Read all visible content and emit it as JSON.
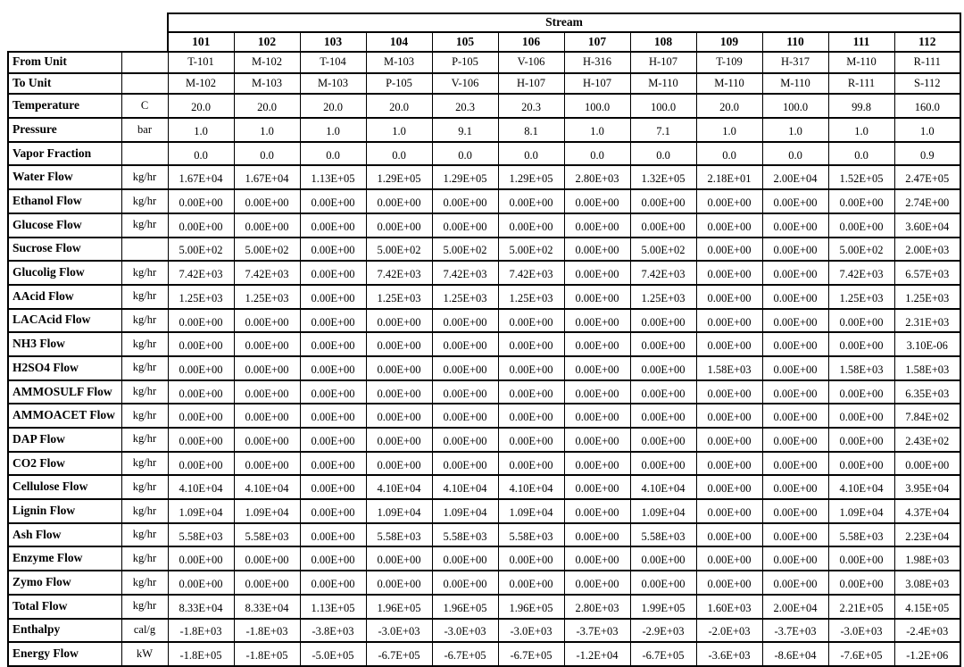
{
  "table": {
    "stream_header": "Stream",
    "columns": [
      "101",
      "102",
      "103",
      "104",
      "105",
      "106",
      "107",
      "108",
      "109",
      "110",
      "111",
      "112"
    ],
    "rows": [
      {
        "label": "From Unit",
        "unit": "",
        "values": [
          "T-101",
          "M-102",
          "T-104",
          "M-103",
          "P-105",
          "V-106",
          "H-316",
          "H-107",
          "T-109",
          "H-317",
          "M-110",
          "R-111"
        ]
      },
      {
        "label": "To Unit",
        "unit": "",
        "values": [
          "M-102",
          "M-103",
          "M-103",
          "P-105",
          "V-106",
          "H-107",
          "H-107",
          "M-110",
          "M-110",
          "M-110",
          "R-111",
          "S-112"
        ]
      },
      {
        "label": "Temperature",
        "unit": "C",
        "values": [
          "20.0",
          "20.0",
          "20.0",
          "20.0",
          "20.3",
          "20.3",
          "100.0",
          "100.0",
          "20.0",
          "100.0",
          "99.8",
          "160.0"
        ]
      },
      {
        "label": "Pressure",
        "unit": "bar",
        "values": [
          "1.0",
          "1.0",
          "1.0",
          "1.0",
          "9.1",
          "8.1",
          "1.0",
          "7.1",
          "1.0",
          "1.0",
          "1.0",
          "1.0"
        ]
      },
      {
        "label": "Vapor Fraction",
        "unit": "",
        "values": [
          "0.0",
          "0.0",
          "0.0",
          "0.0",
          "0.0",
          "0.0",
          "0.0",
          "0.0",
          "0.0",
          "0.0",
          "0.0",
          "0.9"
        ]
      },
      {
        "label": "Water Flow",
        "unit": "kg/hr",
        "values": [
          "1.67E+04",
          "1.67E+04",
          "1.13E+05",
          "1.29E+05",
          "1.29E+05",
          "1.29E+05",
          "2.80E+03",
          "1.32E+05",
          "2.18E+01",
          "2.00E+04",
          "1.52E+05",
          "2.47E+05"
        ]
      },
      {
        "label": "Ethanol Flow",
        "unit": "kg/hr",
        "values": [
          "0.00E+00",
          "0.00E+00",
          "0.00E+00",
          "0.00E+00",
          "0.00E+00",
          "0.00E+00",
          "0.00E+00",
          "0.00E+00",
          "0.00E+00",
          "0.00E+00",
          "0.00E+00",
          "2.74E+00"
        ]
      },
      {
        "label": "Glucose Flow",
        "unit": "kg/hr",
        "values": [
          "0.00E+00",
          "0.00E+00",
          "0.00E+00",
          "0.00E+00",
          "0.00E+00",
          "0.00E+00",
          "0.00E+00",
          "0.00E+00",
          "0.00E+00",
          "0.00E+00",
          "0.00E+00",
          "3.60E+04"
        ]
      },
      {
        "label": "Sucrose Flow",
        "unit": "",
        "values": [
          "5.00E+02",
          "5.00E+02",
          "0.00E+00",
          "5.00E+02",
          "5.00E+02",
          "5.00E+02",
          "0.00E+00",
          "5.00E+02",
          "0.00E+00",
          "0.00E+00",
          "5.00E+02",
          "2.00E+03"
        ]
      },
      {
        "label": "Glucolig Flow",
        "unit": "kg/hr",
        "values": [
          "7.42E+03",
          "7.42E+03",
          "0.00E+00",
          "7.42E+03",
          "7.42E+03",
          "7.42E+03",
          "0.00E+00",
          "7.42E+03",
          "0.00E+00",
          "0.00E+00",
          "7.42E+03",
          "6.57E+03"
        ]
      },
      {
        "label": "AAcid Flow",
        "unit": "kg/hr",
        "values": [
          "1.25E+03",
          "1.25E+03",
          "0.00E+00",
          "1.25E+03",
          "1.25E+03",
          "1.25E+03",
          "0.00E+00",
          "1.25E+03",
          "0.00E+00",
          "0.00E+00",
          "1.25E+03",
          "1.25E+03"
        ]
      },
      {
        "label": "LACAcid Flow",
        "unit": "kg/hr",
        "values": [
          "0.00E+00",
          "0.00E+00",
          "0.00E+00",
          "0.00E+00",
          "0.00E+00",
          "0.00E+00",
          "0.00E+00",
          "0.00E+00",
          "0.00E+00",
          "0.00E+00",
          "0.00E+00",
          "2.31E+03"
        ]
      },
      {
        "label": "NH3 Flow",
        "unit": "kg/hr",
        "values": [
          "0.00E+00",
          "0.00E+00",
          "0.00E+00",
          "0.00E+00",
          "0.00E+00",
          "0.00E+00",
          "0.00E+00",
          "0.00E+00",
          "0.00E+00",
          "0.00E+00",
          "0.00E+00",
          "3.10E-06"
        ]
      },
      {
        "label": "H2SO4 Flow",
        "unit": "kg/hr",
        "values": [
          "0.00E+00",
          "0.00E+00",
          "0.00E+00",
          "0.00E+00",
          "0.00E+00",
          "0.00E+00",
          "0.00E+00",
          "0.00E+00",
          "1.58E+03",
          "0.00E+00",
          "1.58E+03",
          "1.58E+03"
        ]
      },
      {
        "label": "AMMOSULF Flow",
        "unit": "kg/hr",
        "values": [
          "0.00E+00",
          "0.00E+00",
          "0.00E+00",
          "0.00E+00",
          "0.00E+00",
          "0.00E+00",
          "0.00E+00",
          "0.00E+00",
          "0.00E+00",
          "0.00E+00",
          "0.00E+00",
          "6.35E+03"
        ]
      },
      {
        "label": "AMMOACET Flow",
        "unit": "kg/hr",
        "values": [
          "0.00E+00",
          "0.00E+00",
          "0.00E+00",
          "0.00E+00",
          "0.00E+00",
          "0.00E+00",
          "0.00E+00",
          "0.00E+00",
          "0.00E+00",
          "0.00E+00",
          "0.00E+00",
          "7.84E+02"
        ]
      },
      {
        "label": "DAP Flow",
        "unit": "kg/hr",
        "values": [
          "0.00E+00",
          "0.00E+00",
          "0.00E+00",
          "0.00E+00",
          "0.00E+00",
          "0.00E+00",
          "0.00E+00",
          "0.00E+00",
          "0.00E+00",
          "0.00E+00",
          "0.00E+00",
          "2.43E+02"
        ]
      },
      {
        "label": "CO2 Flow",
        "unit": "kg/hr",
        "values": [
          "0.00E+00",
          "0.00E+00",
          "0.00E+00",
          "0.00E+00",
          "0.00E+00",
          "0.00E+00",
          "0.00E+00",
          "0.00E+00",
          "0.00E+00",
          "0.00E+00",
          "0.00E+00",
          "0.00E+00"
        ]
      },
      {
        "label": "Cellulose Flow",
        "unit": "kg/hr",
        "values": [
          "4.10E+04",
          "4.10E+04",
          "0.00E+00",
          "4.10E+04",
          "4.10E+04",
          "4.10E+04",
          "0.00E+00",
          "4.10E+04",
          "0.00E+00",
          "0.00E+00",
          "4.10E+04",
          "3.95E+04"
        ]
      },
      {
        "label": "Lignin Flow",
        "unit": "kg/hr",
        "values": [
          "1.09E+04",
          "1.09E+04",
          "0.00E+00",
          "1.09E+04",
          "1.09E+04",
          "1.09E+04",
          "0.00E+00",
          "1.09E+04",
          "0.00E+00",
          "0.00E+00",
          "1.09E+04",
          "4.37E+04"
        ]
      },
      {
        "label": "Ash Flow",
        "unit": "kg/hr",
        "values": [
          "5.58E+03",
          "5.58E+03",
          "0.00E+00",
          "5.58E+03",
          "5.58E+03",
          "5.58E+03",
          "0.00E+00",
          "5.58E+03",
          "0.00E+00",
          "0.00E+00",
          "5.58E+03",
          "2.23E+04"
        ]
      },
      {
        "label": "Enzyme Flow",
        "unit": "kg/hr",
        "values": [
          "0.00E+00",
          "0.00E+00",
          "0.00E+00",
          "0.00E+00",
          "0.00E+00",
          "0.00E+00",
          "0.00E+00",
          "0.00E+00",
          "0.00E+00",
          "0.00E+00",
          "0.00E+00",
          "1.98E+03"
        ]
      },
      {
        "label": "Zymo Flow",
        "unit": "kg/hr",
        "values": [
          "0.00E+00",
          "0.00E+00",
          "0.00E+00",
          "0.00E+00",
          "0.00E+00",
          "0.00E+00",
          "0.00E+00",
          "0.00E+00",
          "0.00E+00",
          "0.00E+00",
          "0.00E+00",
          "3.08E+03"
        ]
      },
      {
        "label": "Total Flow",
        "unit": "kg/hr",
        "values": [
          "8.33E+04",
          "8.33E+04",
          "1.13E+05",
          "1.96E+05",
          "1.96E+05",
          "1.96E+05",
          "2.80E+03",
          "1.99E+05",
          "1.60E+03",
          "2.00E+04",
          "2.21E+05",
          "4.15E+05"
        ]
      },
      {
        "label": "Enthalpy",
        "unit": "cal/g",
        "values": [
          "-1.8E+03",
          "-1.8E+03",
          "-3.8E+03",
          "-3.0E+03",
          "-3.0E+03",
          "-3.0E+03",
          "-3.7E+03",
          "-2.9E+03",
          "-2.0E+03",
          "-3.7E+03",
          "-3.0E+03",
          "-2.4E+03"
        ]
      },
      {
        "label": "Energy Flow",
        "unit": "kW",
        "values": [
          "-1.8E+05",
          "-1.8E+05",
          "-5.0E+05",
          "-6.7E+05",
          "-6.7E+05",
          "-6.7E+05",
          "-1.2E+04",
          "-6.7E+05",
          "-3.6E+03",
          "-8.6E+04",
          "-7.6E+05",
          "-1.2E+06"
        ]
      }
    ]
  }
}
